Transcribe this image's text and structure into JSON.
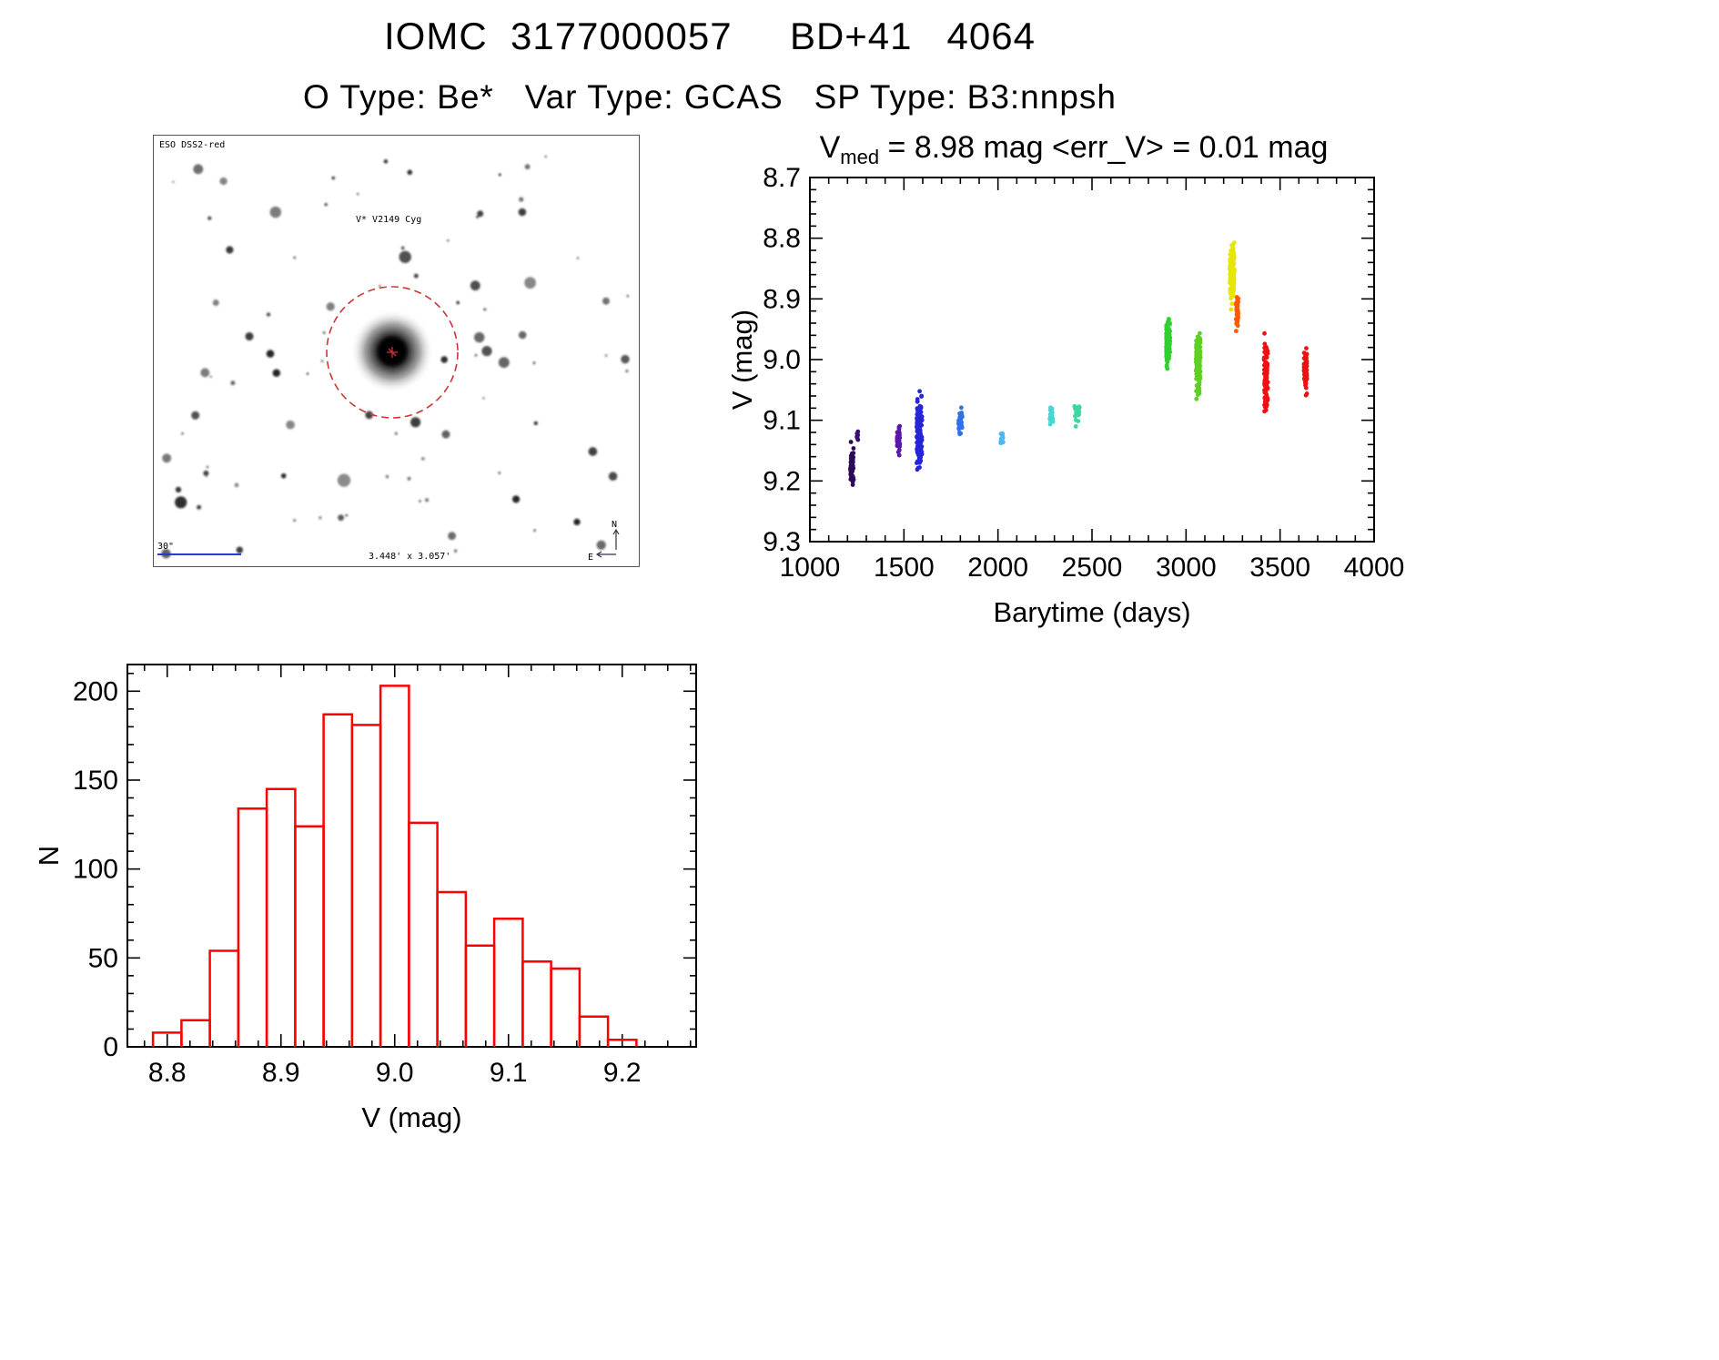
{
  "header": {
    "title": "IOMC  3177000057     BD+41   4064",
    "subtitle": "O Type: Be*   Var Type: GCAS   SP Type: B3:nnpsh"
  },
  "finder_chart": {
    "survey": "ESO DSS2-red",
    "target": "V* V2149 Cyg",
    "scale": "30\"",
    "field_size": "3.448' x 3.057'",
    "compass_north": "N",
    "compass_east": "E",
    "circle_color": "#cc3434",
    "annotation_blue": "#2b3bd0",
    "annotation_red": "#b03030"
  },
  "chart_data": [
    {
      "type": "scatter",
      "title": {
        "prefix": "V",
        "subscript": "med",
        "suffix": " = 8.98 mag <err_V> = 0.01 mag"
      },
      "xlabel": "Barytime (days)",
      "ylabel": "V (mag)",
      "xlim": [
        1000,
        4000
      ],
      "ylim": [
        8.7,
        9.3
      ],
      "y_axis_inverted": true,
      "xticks": [
        1000,
        1500,
        2000,
        2500,
        3000,
        3500,
        4000
      ],
      "yticks": [
        8.7,
        8.8,
        8.9,
        9.0,
        9.1,
        9.2,
        9.3
      ],
      "x_minor_step": 100,
      "y_minor_step": 0.02,
      "grid": false,
      "legend": "none",
      "series": [
        {
          "name": "epoch-01",
          "x_center": 1225,
          "x_spread": 10,
          "v_min": 9.13,
          "v_max": 9.215,
          "n_points": 50,
          "color": "#2d0a57"
        },
        {
          "name": "epoch-02",
          "x_center": 1252,
          "x_spread": 4,
          "v_min": 9.115,
          "v_max": 9.135,
          "n_points": 8,
          "color": "#3a0d70"
        },
        {
          "name": "epoch-03",
          "x_center": 1470,
          "x_spread": 8,
          "v_min": 9.095,
          "v_max": 9.175,
          "n_points": 40,
          "color": "#5a18a8"
        },
        {
          "name": "epoch-04",
          "x_center": 1582,
          "x_spread": 14,
          "v_min": 9.04,
          "v_max": 9.195,
          "n_points": 130,
          "color": "#2525d8"
        },
        {
          "name": "epoch-05",
          "x_center": 1800,
          "x_spread": 10,
          "v_min": 9.065,
          "v_max": 9.135,
          "n_points": 35,
          "color": "#2e72e8"
        },
        {
          "name": "epoch-06",
          "x_center": 2020,
          "x_spread": 8,
          "v_min": 9.115,
          "v_max": 9.145,
          "n_points": 16,
          "color": "#4fb6f0"
        },
        {
          "name": "epoch-07",
          "x_center": 2285,
          "x_spread": 10,
          "v_min": 9.075,
          "v_max": 9.115,
          "n_points": 22,
          "color": "#46d8d0"
        },
        {
          "name": "epoch-08",
          "x_center": 2420,
          "x_spread": 14,
          "v_min": 9.06,
          "v_max": 9.115,
          "n_points": 26,
          "color": "#3cd8a4"
        },
        {
          "name": "epoch-09",
          "x_center": 2905,
          "x_spread": 10,
          "v_min": 8.92,
          "v_max": 9.025,
          "n_points": 130,
          "color": "#2fd02f"
        },
        {
          "name": "epoch-10",
          "x_center": 3065,
          "x_spread": 12,
          "v_min": 8.93,
          "v_max": 9.075,
          "n_points": 110,
          "color": "#5fd023"
        },
        {
          "name": "epoch-11",
          "x_center": 3245,
          "x_spread": 12,
          "v_min": 8.785,
          "v_max": 8.935,
          "n_points": 120,
          "color": "#e6e600"
        },
        {
          "name": "epoch-12",
          "x_center": 3272,
          "x_spread": 6,
          "v_min": 8.88,
          "v_max": 8.965,
          "n_points": 40,
          "color": "#ff5a00"
        },
        {
          "name": "epoch-13",
          "x_center": 3425,
          "x_spread": 10,
          "v_min": 8.95,
          "v_max": 9.11,
          "n_points": 90,
          "color": "#ee1111"
        },
        {
          "name": "epoch-14",
          "x_center": 3635,
          "x_spread": 8,
          "v_min": 8.965,
          "v_max": 9.075,
          "n_points": 55,
          "color": "#ee1111"
        }
      ]
    },
    {
      "type": "bar",
      "title": "",
      "xlabel": "V (mag)",
      "ylabel": "N",
      "xlim": [
        8.765,
        9.265
      ],
      "ylim": [
        0,
        215
      ],
      "xticks": [
        8.8,
        8.9,
        9.0,
        9.1,
        9.2
      ],
      "yticks": [
        0,
        50,
        100,
        150,
        200
      ],
      "x_minor_step": 0.02,
      "y_minor_step": 10,
      "grid": false,
      "bar_outline_color": "#ff0000",
      "bin_width": 0.025,
      "bins": [
        {
          "left": 8.7875,
          "count": 8
        },
        {
          "left": 8.8125,
          "count": 15
        },
        {
          "left": 8.8375,
          "count": 54
        },
        {
          "left": 8.8625,
          "count": 134
        },
        {
          "left": 8.8875,
          "count": 145
        },
        {
          "left": 8.9125,
          "count": 124
        },
        {
          "left": 8.9375,
          "count": 187
        },
        {
          "left": 8.9625,
          "count": 181
        },
        {
          "left": 8.9875,
          "count": 203
        },
        {
          "left": 9.0125,
          "count": 126
        },
        {
          "left": 9.0375,
          "count": 87
        },
        {
          "left": 9.0625,
          "count": 57
        },
        {
          "left": 9.0875,
          "count": 72
        },
        {
          "left": 9.1125,
          "count": 48
        },
        {
          "left": 9.1375,
          "count": 44
        },
        {
          "left": 9.1625,
          "count": 17
        },
        {
          "left": 9.1875,
          "count": 4
        }
      ]
    }
  ]
}
